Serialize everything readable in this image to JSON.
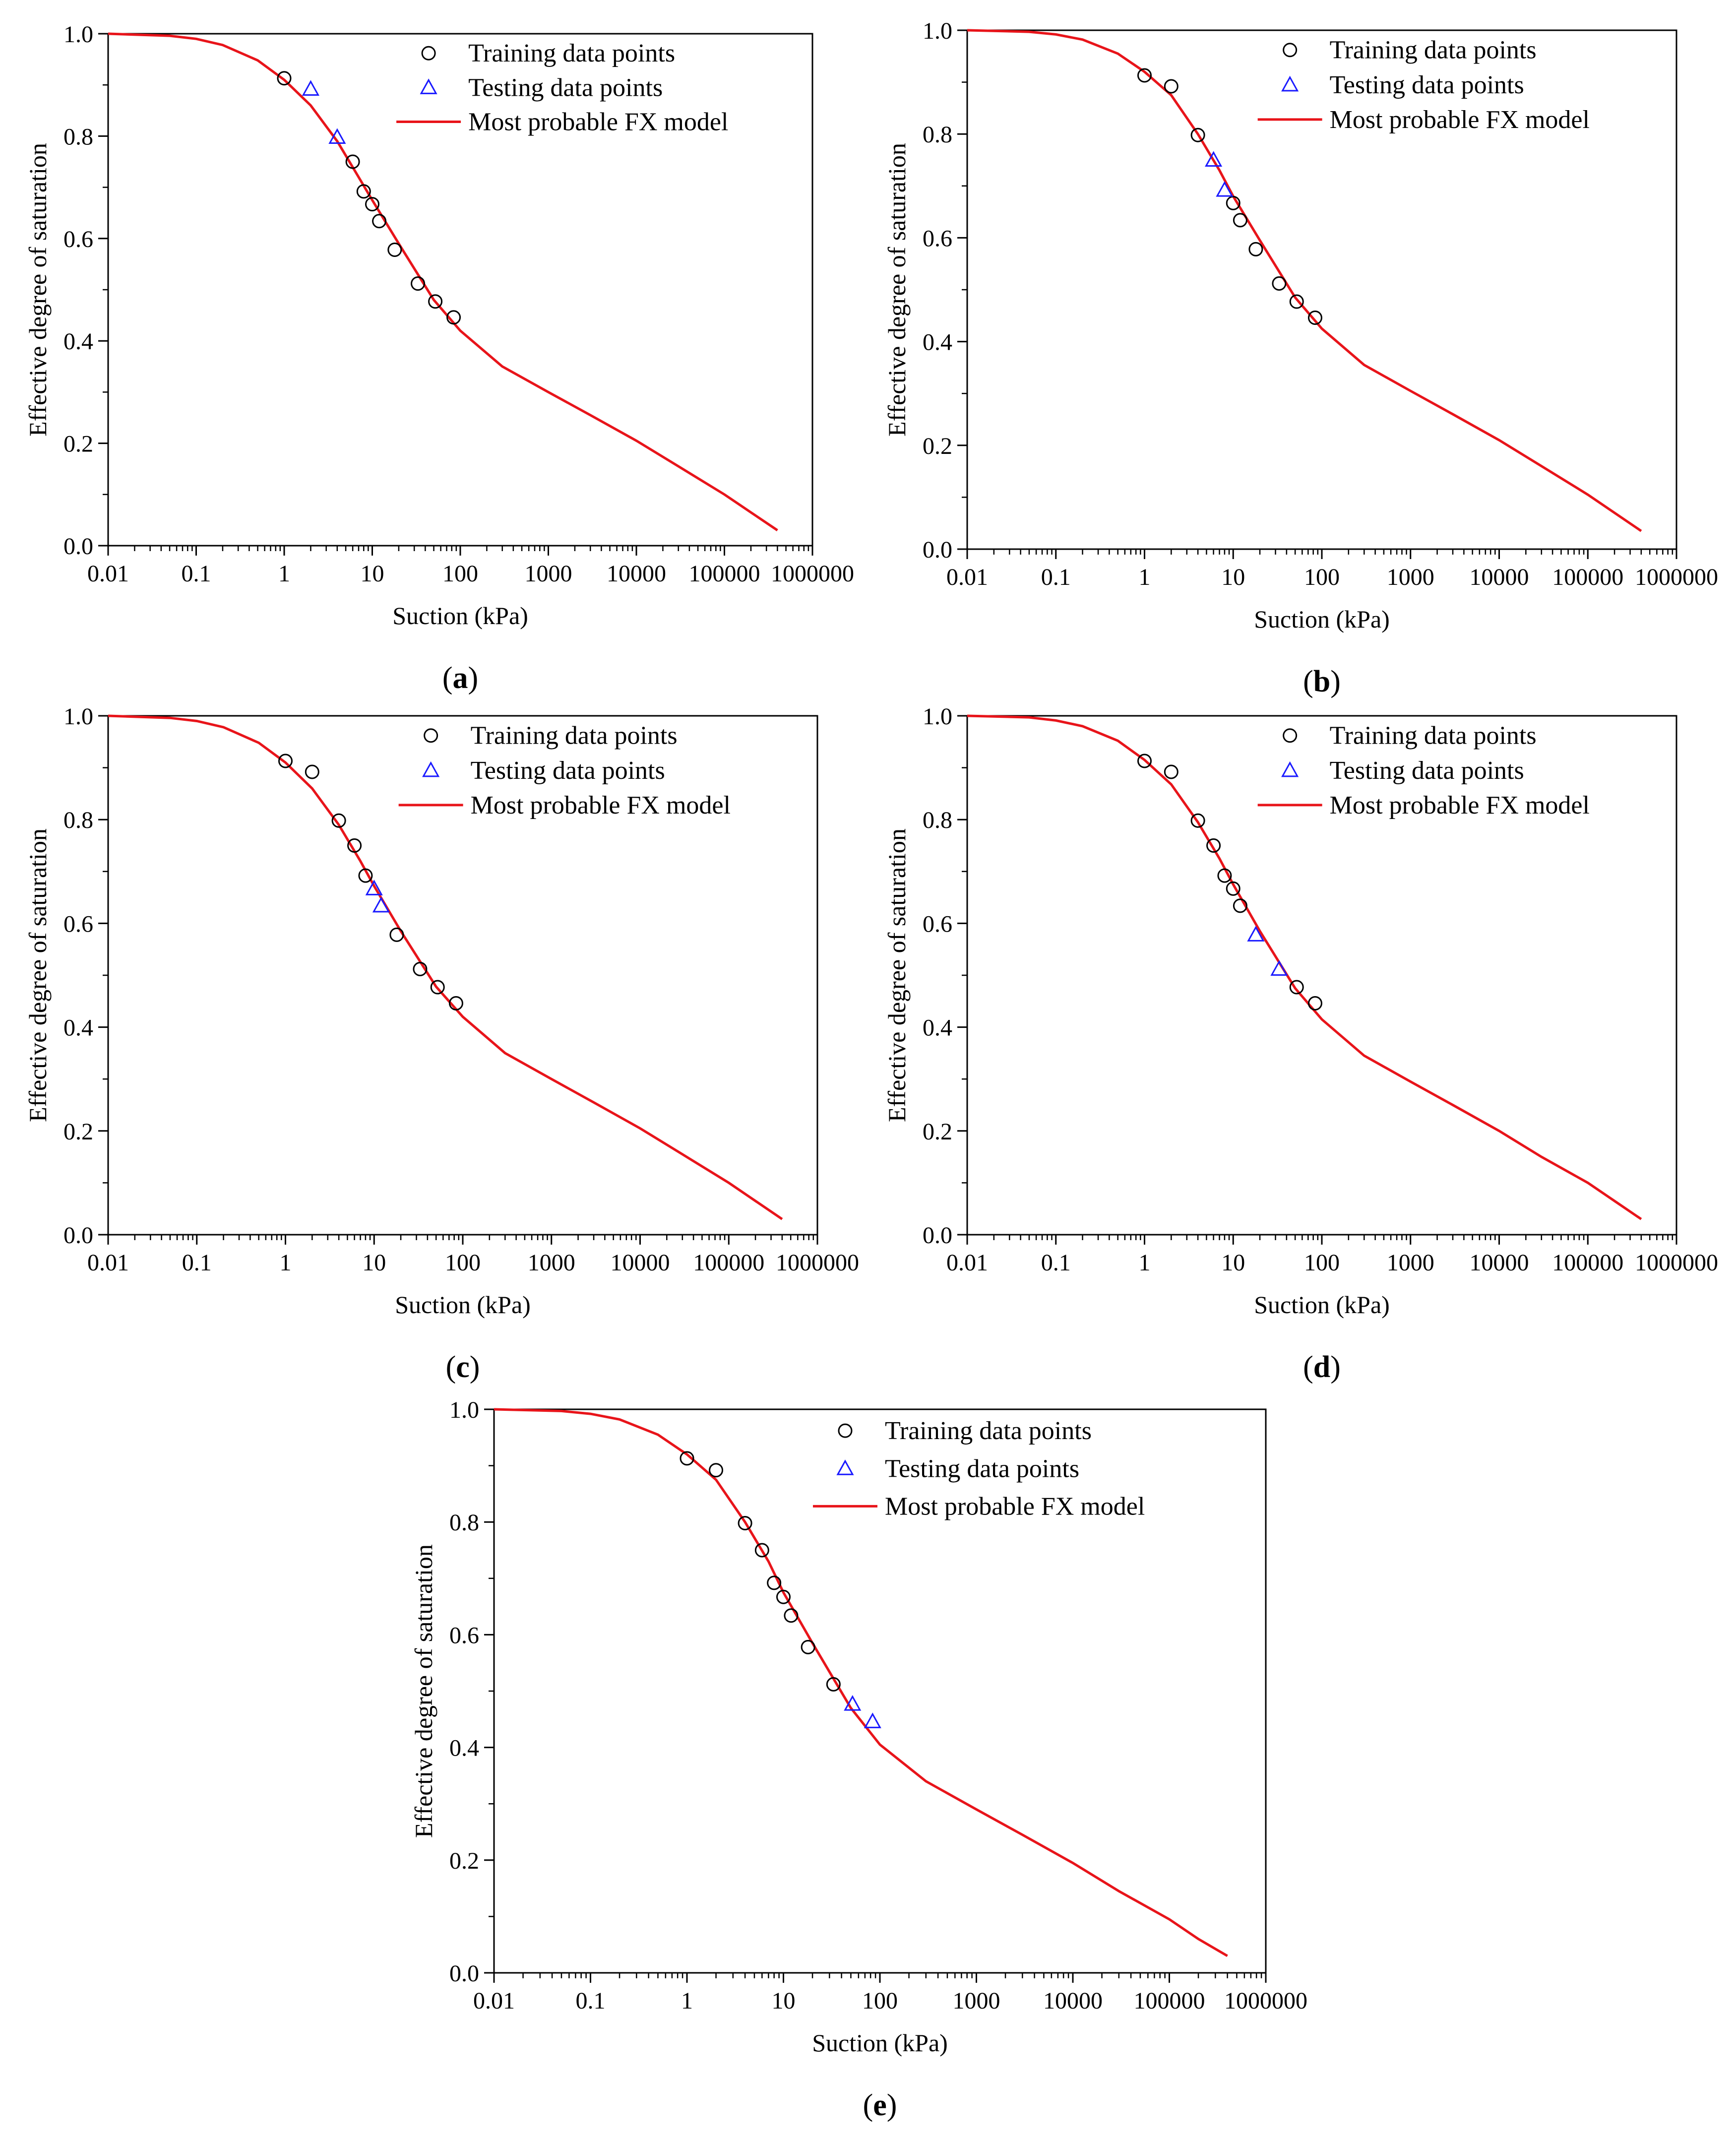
{
  "figure": {
    "legend": {
      "training": "Training data points",
      "testing": "Testing data points",
      "model": "Most probable FX model"
    },
    "colors": {
      "model_line": "#e8141a",
      "testing_marker": "#1a1aff",
      "training_marker": "#000000",
      "axes": "#000000"
    }
  },
  "chart_data": [
    {
      "panel": "a",
      "label_parts": [
        "(",
        "a",
        ")"
      ],
      "type": "scatter",
      "xlabel": "Suction (kPa)",
      "ylabel": "Effective degree of saturation",
      "xscale": "log",
      "xlim": [
        0.01,
        1000000
      ],
      "ylim": [
        0,
        1.0
      ],
      "xticks": [
        "0.01",
        "0.1",
        "1",
        "10",
        "100",
        "1000",
        "10000",
        "100000",
        "1000000"
      ],
      "yticks": [
        "0.0",
        "0.2",
        "0.4",
        "0.6",
        "0.8",
        "1.0"
      ],
      "series": [
        {
          "name": "Training data points",
          "marker": "circle",
          "x": [
            1,
            6,
            8,
            10,
            12,
            18,
            33,
            52,
            84
          ],
          "y": [
            0.913,
            0.75,
            0.692,
            0.667,
            0.634,
            0.578,
            0.512,
            0.477,
            0.446
          ]
        },
        {
          "name": "Testing data points",
          "marker": "triangle",
          "x": [
            2,
            4
          ],
          "y": [
            0.892,
            0.798
          ]
        },
        {
          "name": "Most probable FX model",
          "marker": "line",
          "x": [
            0.01,
            0.05,
            0.1,
            0.2,
            0.5,
            1,
            2,
            4,
            7,
            10,
            20,
            50,
            100,
            300,
            1000,
            3000,
            10000,
            30000,
            100000,
            200000,
            400000
          ],
          "y": [
            1.0,
            0.996,
            0.99,
            0.978,
            0.948,
            0.91,
            0.86,
            0.79,
            0.72,
            0.675,
            0.59,
            0.48,
            0.42,
            0.35,
            0.3,
            0.255,
            0.205,
            0.155,
            0.1,
            0.065,
            0.03
          ]
        }
      ]
    },
    {
      "panel": "b",
      "label_parts": [
        "(",
        "b",
        ")"
      ],
      "type": "scatter",
      "xlabel": "Suction (kPa)",
      "ylabel": "Effective degree of saturation",
      "xscale": "log",
      "xlim": [
        0.01,
        1000000
      ],
      "ylim": [
        0,
        1.0
      ],
      "xticks": [
        "0.01",
        "0.1",
        "1",
        "10",
        "100",
        "1000",
        "10000",
        "100000",
        "1000000"
      ],
      "yticks": [
        "0.0",
        "0.2",
        "0.4",
        "0.6",
        "0.8",
        "1.0"
      ],
      "series": [
        {
          "name": "Training data points",
          "marker": "circle",
          "x": [
            1,
            2,
            4,
            10,
            12,
            18,
            33,
            52,
            84
          ],
          "y": [
            0.913,
            0.892,
            0.798,
            0.667,
            0.634,
            0.578,
            0.512,
            0.477,
            0.446
          ]
        },
        {
          "name": "Testing data points",
          "marker": "triangle",
          "x": [
            6,
            8
          ],
          "y": [
            0.75,
            0.692
          ]
        },
        {
          "name": "Most probable FX model",
          "marker": "line",
          "x": [
            0.01,
            0.05,
            0.1,
            0.2,
            0.5,
            1,
            2,
            4,
            7,
            10,
            20,
            50,
            100,
            300,
            1000,
            3000,
            10000,
            30000,
            100000,
            200000,
            400000
          ],
          "y": [
            1.0,
            0.997,
            0.992,
            0.982,
            0.955,
            0.92,
            0.875,
            0.8,
            0.73,
            0.68,
            0.595,
            0.485,
            0.425,
            0.355,
            0.305,
            0.26,
            0.21,
            0.16,
            0.105,
            0.07,
            0.035
          ]
        }
      ]
    },
    {
      "panel": "c",
      "label_parts": [
        "(",
        "c",
        ")"
      ],
      "type": "scatter",
      "xlabel": "Suction (kPa)",
      "ylabel": "Effective degree of saturation",
      "xscale": "log",
      "xlim": [
        0.01,
        1000000
      ],
      "ylim": [
        0,
        1.0
      ],
      "xticks": [
        "0.01",
        "0.1",
        "1",
        "10",
        "100",
        "1000",
        "10000",
        "100000",
        "1000000"
      ],
      "yticks": [
        "0.0",
        "0.2",
        "0.4",
        "0.6",
        "0.8",
        "1.0"
      ],
      "series": [
        {
          "name": "Training data points",
          "marker": "circle",
          "x": [
            1,
            2,
            4,
            6,
            8,
            18,
            33,
            52,
            84
          ],
          "y": [
            0.913,
            0.892,
            0.798,
            0.75,
            0.692,
            0.578,
            0.512,
            0.477,
            0.446
          ]
        },
        {
          "name": "Testing data points",
          "marker": "triangle",
          "x": [
            10,
            12
          ],
          "y": [
            0.667,
            0.634
          ]
        },
        {
          "name": "Most probable FX model",
          "marker": "line",
          "x": [
            0.01,
            0.05,
            0.1,
            0.2,
            0.5,
            1,
            2,
            4,
            7,
            10,
            20,
            50,
            100,
            300,
            1000,
            3000,
            10000,
            30000,
            100000,
            200000,
            400000
          ],
          "y": [
            1.0,
            0.996,
            0.99,
            0.978,
            0.948,
            0.91,
            0.86,
            0.79,
            0.72,
            0.672,
            0.585,
            0.478,
            0.42,
            0.35,
            0.3,
            0.255,
            0.205,
            0.155,
            0.1,
            0.065,
            0.03
          ]
        }
      ]
    },
    {
      "panel": "d",
      "label_parts": [
        "(",
        "d",
        ")"
      ],
      "type": "scatter",
      "xlabel": "Suction (kPa)",
      "ylabel": "Effective degree of saturation",
      "xscale": "log",
      "xlim": [
        0.01,
        1000000
      ],
      "ylim": [
        0,
        1.0
      ],
      "xticks": [
        "0.01",
        "0.1",
        "1",
        "10",
        "100",
        "1000",
        "10000",
        "100000",
        "1000000"
      ],
      "yticks": [
        "0.0",
        "0.2",
        "0.4",
        "0.6",
        "0.8",
        "1.0"
      ],
      "series": [
        {
          "name": "Training data points",
          "marker": "circle",
          "x": [
            1,
            2,
            4,
            6,
            8,
            10,
            12,
            52,
            84
          ],
          "y": [
            0.913,
            0.892,
            0.798,
            0.75,
            0.692,
            0.667,
            0.634,
            0.477,
            0.446
          ]
        },
        {
          "name": "Testing data points",
          "marker": "triangle",
          "x": [
            18,
            33
          ],
          "y": [
            0.578,
            0.512
          ]
        },
        {
          "name": "Most probable FX model",
          "marker": "line",
          "x": [
            0.01,
            0.05,
            0.1,
            0.2,
            0.5,
            1,
            2,
            4,
            7,
            10,
            20,
            50,
            100,
            300,
            1000,
            3000,
            10000,
            30000,
            100000,
            200000,
            400000
          ],
          "y": [
            1.0,
            0.997,
            0.991,
            0.98,
            0.952,
            0.915,
            0.868,
            0.795,
            0.725,
            0.675,
            0.585,
            0.475,
            0.415,
            0.345,
            0.295,
            0.25,
            0.2,
            0.15,
            0.1,
            0.065,
            0.03
          ]
        }
      ]
    },
    {
      "panel": "e",
      "label_parts": [
        "(",
        "e",
        ")"
      ],
      "type": "scatter",
      "xlabel": "Suction (kPa)",
      "ylabel": "Effective degree of saturation",
      "xscale": "log",
      "xlim": [
        0.01,
        1000000
      ],
      "ylim": [
        0,
        1.0
      ],
      "xticks": [
        "0.01",
        "0.1",
        "1",
        "10",
        "100",
        "1000",
        "10000",
        "100000",
        "1000000"
      ],
      "yticks": [
        "0.0",
        "0.2",
        "0.4",
        "0.6",
        "0.8",
        "1.0"
      ],
      "series": [
        {
          "name": "Training data points",
          "marker": "circle",
          "x": [
            1,
            2,
            4,
            6,
            8,
            10,
            12,
            18,
            33
          ],
          "y": [
            0.913,
            0.892,
            0.798,
            0.75,
            0.692,
            0.667,
            0.634,
            0.578,
            0.512
          ]
        },
        {
          "name": "Testing data points",
          "marker": "triangle",
          "x": [
            52,
            84
          ],
          "y": [
            0.477,
            0.446
          ]
        },
        {
          "name": "Most probable FX model",
          "marker": "line",
          "x": [
            0.01,
            0.05,
            0.1,
            0.2,
            0.5,
            1,
            2,
            4,
            7,
            10,
            20,
            50,
            100,
            300,
            1000,
            3000,
            10000,
            30000,
            100000,
            200000,
            400000
          ],
          "y": [
            1.0,
            0.997,
            0.992,
            0.982,
            0.955,
            0.92,
            0.875,
            0.8,
            0.73,
            0.675,
            0.585,
            0.47,
            0.405,
            0.34,
            0.29,
            0.245,
            0.195,
            0.145,
            0.095,
            0.06,
            0.03
          ]
        }
      ]
    }
  ]
}
